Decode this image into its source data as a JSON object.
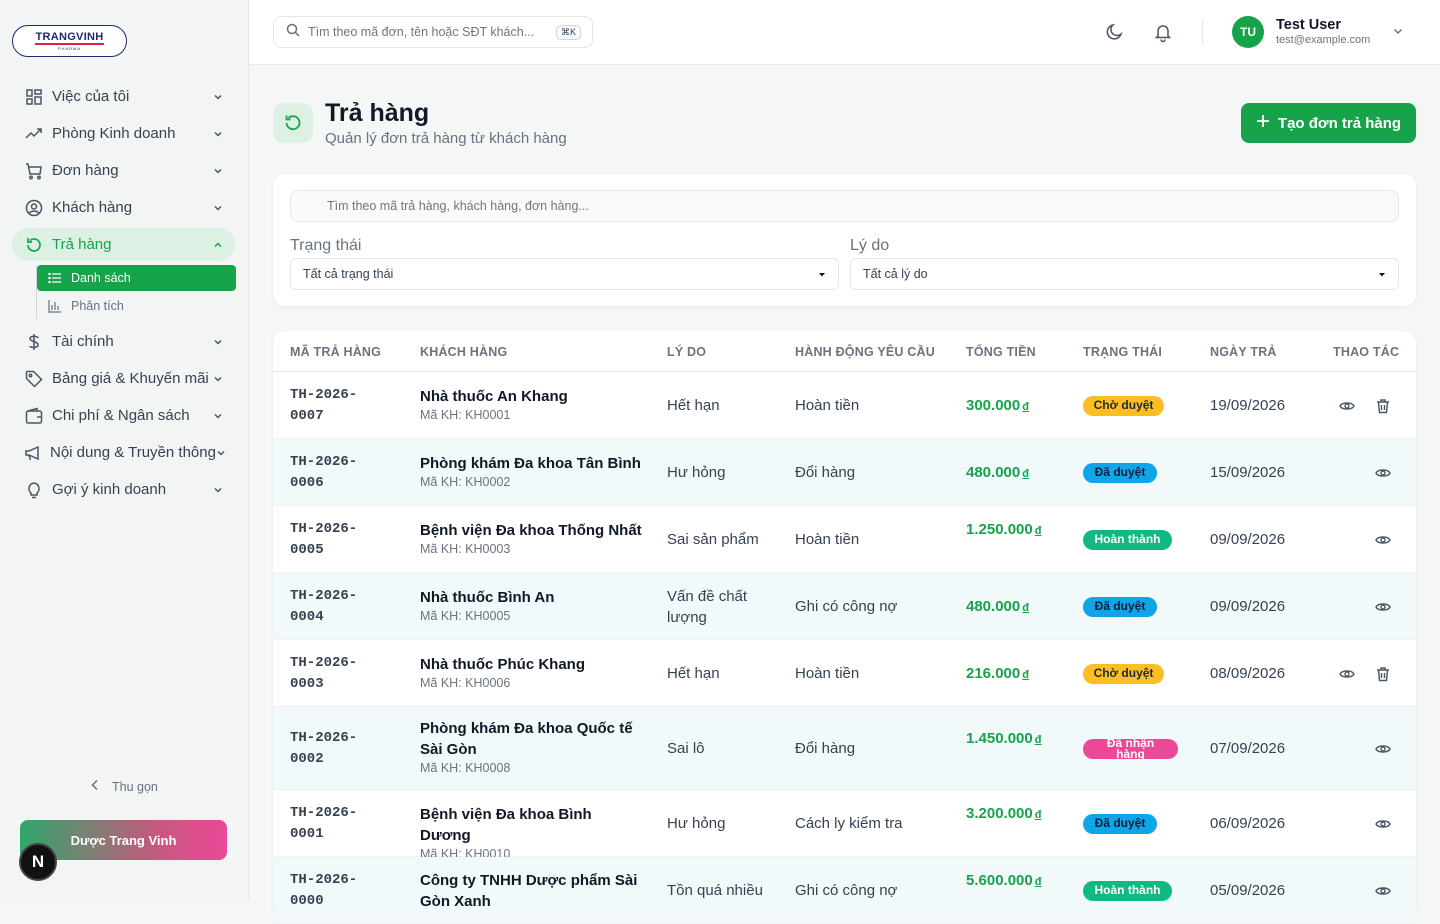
{
  "brand": {
    "name": "TRANGVINH",
    "sub": "PHARMA"
  },
  "sidebar": {
    "items": [
      {
        "label": "Việc của tôi",
        "icon": "grid-icon"
      },
      {
        "label": "Phòng Kinh doanh",
        "icon": "trend-icon"
      },
      {
        "label": "Đơn hàng",
        "icon": "cart-icon"
      },
      {
        "label": "Khách hàng",
        "icon": "user-circle-icon"
      },
      {
        "label": "Trả hàng",
        "icon": "refresh-icon",
        "active": true
      },
      {
        "label": "Tài chính",
        "icon": "dollar-icon"
      },
      {
        "label": "Bảng giá & Khuyến mãi",
        "icon": "tag-icon"
      },
      {
        "label": "Chi phí & Ngân sách",
        "icon": "wallet-icon"
      },
      {
        "label": "Nội dung & Truyền thông",
        "icon": "megaphone-icon"
      },
      {
        "label": "Gợi ý kinh doanh",
        "icon": "bulb-icon"
      }
    ],
    "sub_items": [
      {
        "label": "Danh sách",
        "icon": "list-icon",
        "active": true
      },
      {
        "label": "Phân tích",
        "icon": "bar-chart-icon"
      }
    ],
    "collapse_label": "Thu gọn",
    "brand_card": "Dược Trang Vinh",
    "n_badge": "N"
  },
  "topbar": {
    "search_placeholder": "Tìm theo mã đơn, tên hoặc SĐT khách...",
    "shortcut": "⌘K",
    "user": {
      "initials": "TU",
      "name": "Test User",
      "email": "test@example.com"
    }
  },
  "page": {
    "title": "Trả hàng",
    "subtitle": "Quản lý đơn trả hàng từ khách hàng",
    "create_label": "Tạo đơn trả hàng"
  },
  "filters": {
    "search_placeholder": "Tìm theo mã trả hàng, khách hàng, đơn hàng...",
    "status_label": "Trạng thái",
    "status_value": "Tất cả trạng thái",
    "reason_label": "Lý do",
    "reason_value": "Tất cả lý do"
  },
  "table": {
    "headers": [
      "MÃ TRẢ HÀNG",
      "KHÁCH HÀNG",
      "LÝ DO",
      "HÀNH ĐỘNG YÊU CẦU",
      "TỔNG TIỀN",
      "TRẠNG THÁI",
      "NGÀY TRẢ",
      "THAO TÁC"
    ],
    "currency": "đ",
    "rows": [
      {
        "code1": "TH-2026-",
        "code2": "0007",
        "customer": "Nhà thuốc An Khang",
        "cid": "Mã KH: KH0001",
        "reason": "Hết hạn",
        "action": "Hoàn tiền",
        "amount": "300.000",
        "status": "Chờ duyệt",
        "date": "19/09/2026"
      },
      {
        "code1": "TH-2026-",
        "code2": "0006",
        "customer": "Phòng khám Đa khoa Tân Bình",
        "cid": "Mã KH: KH0002",
        "reason": "Hư hỏng",
        "action": "Đổi hàng",
        "amount": "480.000",
        "status": "Đã duyệt",
        "date": "15/09/2026"
      },
      {
        "code1": "TH-2026-",
        "code2": "0005",
        "customer": "Bệnh viện Đa khoa Thống Nhất",
        "cid": "Mã KH: KH0003",
        "reason": "Sai sản phẩm",
        "action": "Hoàn tiền",
        "amount": "1.250.000",
        "status": "Hoàn thành",
        "date": "09/09/2026"
      },
      {
        "code1": "TH-2026-",
        "code2": "0004",
        "customer": "Nhà thuốc Bình An",
        "cid": "Mã KH: KH0005",
        "reason": "Vấn đề chất lượng",
        "action": "Ghi có công nợ",
        "amount": "480.000",
        "status": "Đã duyệt",
        "date": "09/09/2026"
      },
      {
        "code1": "TH-2026-",
        "code2": "0003",
        "customer": "Nhà thuốc Phúc Khang",
        "cid": "Mã KH: KH0006",
        "reason": "Hết hạn",
        "action": "Hoàn tiền",
        "amount": "216.000",
        "status": "Chờ duyệt",
        "date": "08/09/2026"
      },
      {
        "code1": "TH-2026-",
        "code2": "0002",
        "customer": "Phòng khám Đa khoa Quốc tế Sài Gòn",
        "cid": "Mã KH: KH0008",
        "reason": "Sai lô",
        "action": "Đổi hàng",
        "amount": "1.450.000",
        "status": "Đã nhận hàng",
        "date": "07/09/2026"
      },
      {
        "code1": "TH-2026-",
        "code2": "0001",
        "customer": "Bệnh viện Đa khoa Bình Dương",
        "cid": "Mã KH: KH0010",
        "reason": "Hư hỏng",
        "action": "Cách ly kiểm tra",
        "amount": "3.200.000",
        "status": "Đã duyệt",
        "date": "06/09/2026"
      },
      {
        "code1": "TH-2026-",
        "code2": "0000",
        "customer": "Công ty TNHH Dược phẩm Sài Gòn Xanh",
        "cid": "",
        "reason": "Tồn quá nhiều",
        "action": "Ghi có công nợ",
        "amount": "5.600.000",
        "status": "Hoàn thành",
        "date": "05/09/2026"
      }
    ]
  },
  "colors": {
    "accent": "#16a34a",
    "status_pending": "#fbbf24",
    "status_approved": "#0ea5e9",
    "status_done": "#10b981",
    "status_received": "#ec4899"
  }
}
